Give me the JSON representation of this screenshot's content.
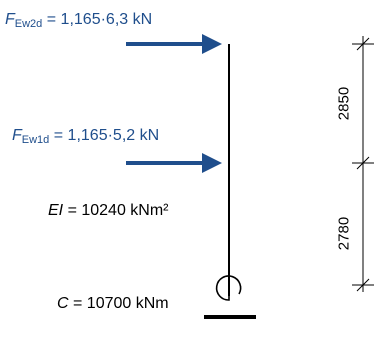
{
  "force_top": {
    "symbol": "F",
    "subscript": "Ew2d",
    "value": " = 1,165·6,3 kN"
  },
  "force_mid": {
    "symbol": "F",
    "subscript": "Ew1d",
    "value": " = 1,165·5,2 kN"
  },
  "stiffness": {
    "symbol": "EI",
    "value": " = 10240 kNm²"
  },
  "spring": {
    "symbol": "C",
    "value": " = 10700 kNm"
  },
  "dimensions": {
    "upper": "2850",
    "lower": "2780"
  },
  "colors": {
    "force_arrow": "#1f4e8c",
    "member": "#000000"
  }
}
